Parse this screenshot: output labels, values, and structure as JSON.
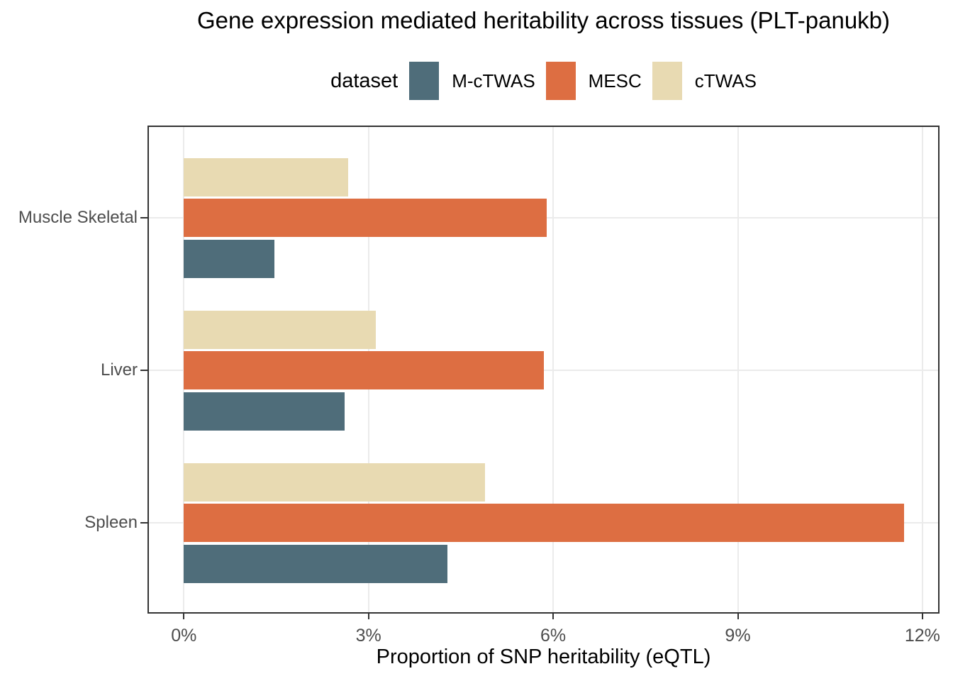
{
  "chart_data": {
    "type": "bar",
    "orientation": "horizontal",
    "title": "Gene expression mediated heritability across tissues (PLT-panukb)",
    "legend_title": "dataset",
    "legend_position": "top",
    "xlabel": "Proportion of SNP heritability (eQTL)",
    "ylabel": "",
    "categories": [
      "Muscle Skeletal",
      "Liver",
      "Spleen"
    ],
    "series": [
      {
        "name": "M-cTWAS",
        "color": "#4F6D7A",
        "values": [
          1.48,
          2.62,
          4.28
        ]
      },
      {
        "name": "MESC",
        "color": "#DD6E42",
        "values": [
          5.9,
          5.85,
          11.71
        ]
      },
      {
        "name": "cTWAS",
        "color": "#E8DAB2",
        "values": [
          2.67,
          3.12,
          4.9
        ]
      }
    ],
    "value_unit": "%",
    "xlim": [
      0,
      12
    ],
    "x_ticks": [
      {
        "value": 0,
        "label": "0%"
      },
      {
        "value": 3,
        "label": "3%"
      },
      {
        "value": 6,
        "label": "6%"
      },
      {
        "value": 9,
        "label": "9%"
      },
      {
        "value": 12,
        "label": "12%"
      }
    ],
    "grid": "major-only",
    "panel_border": true,
    "colors": {
      "grid": "#ebebeb",
      "panel_border": "#333333",
      "axis_text": "#4d4d4d",
      "tick_mark": "#333333"
    }
  }
}
